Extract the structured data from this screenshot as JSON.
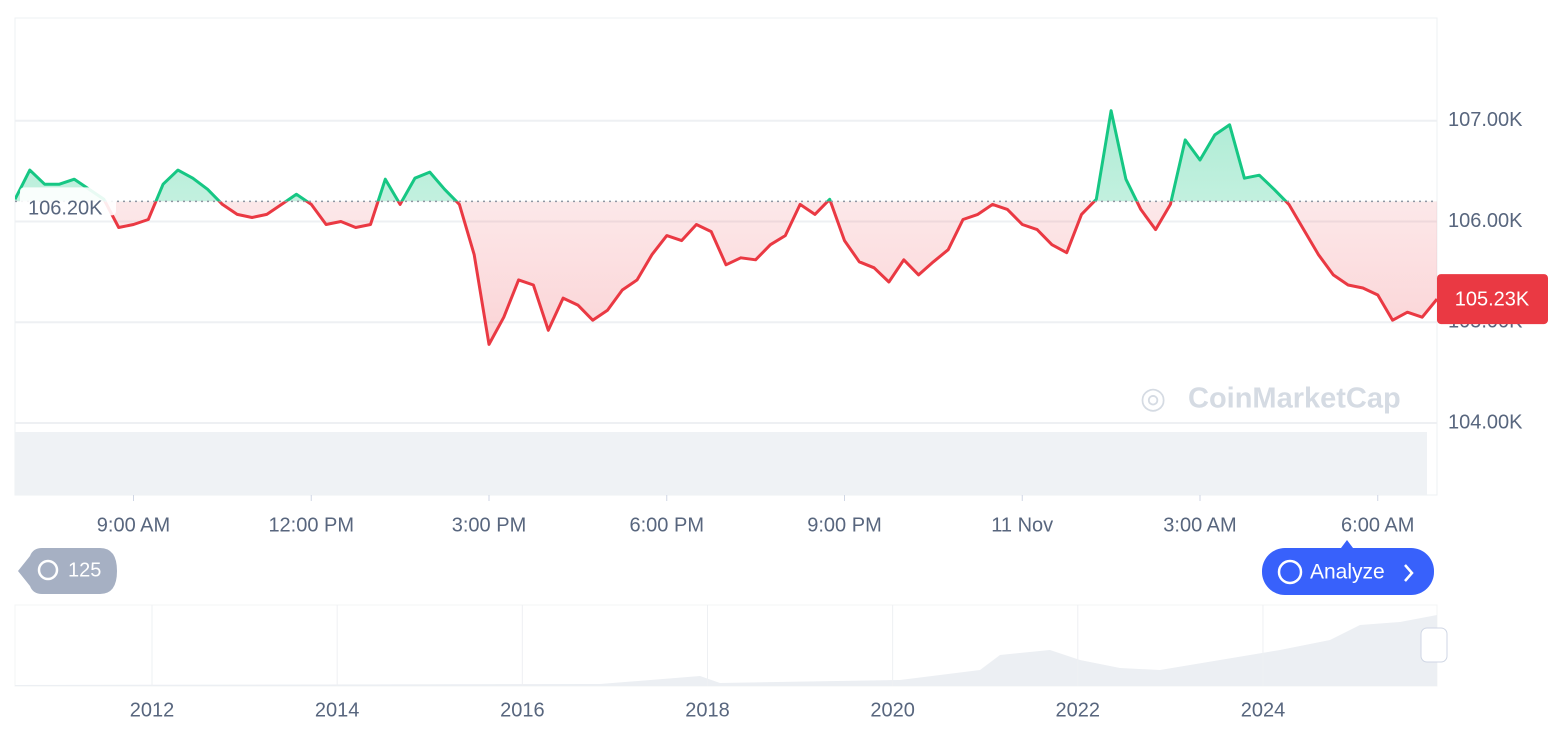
{
  "chart_data": {
    "type": "line",
    "x": [
      7,
      7.25,
      7.5,
      7.75,
      8,
      8.25,
      8.5,
      8.75,
      9,
      9.25,
      9.5,
      9.75,
      10,
      10.25,
      10.5,
      10.75,
      11,
      11.25,
      11.5,
      11.75,
      12,
      12.25,
      12.5,
      12.75,
      13,
      13.25,
      13.5,
      13.75,
      14,
      14.25,
      14.5,
      14.75,
      15,
      15.25,
      15.5,
      15.75,
      16,
      16.25,
      16.5,
      16.75,
      17,
      17.25,
      17.5,
      17.75,
      18,
      18.25,
      18.5,
      18.75,
      19,
      19.25,
      19.5,
      19.75,
      20,
      20.25,
      20.5,
      20.75,
      21,
      21.25,
      21.5,
      21.75,
      22,
      22.25,
      22.5,
      22.75,
      23,
      23.25,
      23.5,
      23.75,
      24,
      24.25,
      24.5,
      24.75,
      25,
      25.25,
      25.5,
      25.75,
      26,
      26.25,
      26.5,
      26.75,
      27,
      27.25,
      27.5,
      27.75,
      28,
      28.25,
      28.5,
      28.75,
      29,
      29.25,
      29.5,
      29.75,
      30,
      30.25,
      30.5,
      30.75,
      31
    ],
    "series": [
      {
        "values": [
          106220,
          106510,
          106370,
          106370,
          106420,
          106320,
          106220,
          105940,
          105970,
          106020,
          106370,
          106510,
          106430,
          106320,
          106170,
          106070,
          106040,
          106070,
          106170,
          106270,
          106170,
          105970,
          106000,
          105940,
          105970,
          106420,
          106170,
          106430,
          106490,
          106320,
          106170,
          105670,
          104780,
          105050,
          105420,
          105370,
          104920,
          105240,
          105170,
          105020,
          105120,
          105320,
          105420,
          105670,
          105860,
          105810,
          105970,
          105900,
          105570,
          105640,
          105620,
          105770,
          105860,
          106170,
          106070,
          106220,
          105810,
          105600,
          105540,
          105400,
          105620,
          105470,
          105600,
          105720,
          106020,
          106070,
          106170,
          106120,
          105970,
          105920,
          105770,
          105690,
          106070,
          106220,
          107100,
          106420,
          106120,
          105920,
          106170,
          106810,
          106610,
          106860,
          106960,
          106430,
          106460,
          106320,
          106170,
          105920,
          105670,
          105470,
          105370,
          105340,
          105270,
          105020,
          105100,
          105050,
          105230
        ]
      }
    ],
    "up_color": "#16c784",
    "down_color": "#ea3943",
    "baseline": {
      "value": 106200,
      "label": "106.20K"
    },
    "current": {
      "value": 105230,
      "label": "105.23K"
    },
    "xlim": [
      7,
      31
    ],
    "xticks": [
      {
        "value": 9,
        "label": "9:00 AM"
      },
      {
        "value": 12,
        "label": "12:00 PM"
      },
      {
        "value": 15,
        "label": "3:00 PM"
      },
      {
        "value": 18,
        "label": "6:00 PM"
      },
      {
        "value": 21,
        "label": "9:00 PM"
      },
      {
        "value": 24,
        "label": "11 Nov"
      },
      {
        "value": 27,
        "label": "3:00 AM"
      },
      {
        "value": 30,
        "label": "6:00 AM"
      }
    ],
    "ylim": [
      104000,
      108000
    ],
    "yticks": [
      {
        "value": 104000,
        "label": "104.00K"
      },
      {
        "value": 105000,
        "label": "105.00K"
      },
      {
        "value": 106000,
        "label": "106.00K"
      },
      {
        "value": 107000,
        "label": "107.00K"
      }
    ],
    "grid": true,
    "navigator": {
      "xlim": [
        2010.52,
        2025.88
      ],
      "xticks": [
        2012,
        2014,
        2016,
        2018,
        2020,
        2022,
        2024
      ]
    }
  },
  "ui": {
    "history_count": 125,
    "analyze": "Analyze",
    "watermark": "CoinMarketCap"
  }
}
